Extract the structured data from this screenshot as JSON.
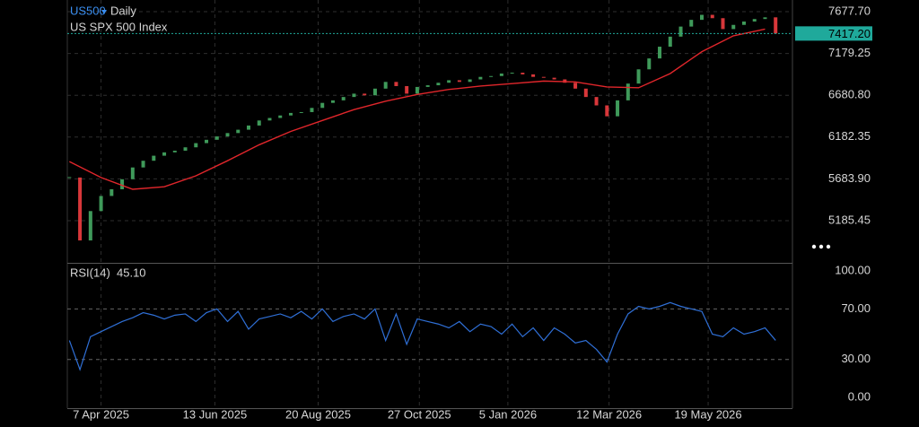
{
  "chart_data": [
    {
      "type": "candlestick",
      "symbol": "US500",
      "timeframe": "Daily",
      "subtitle": "US SPX 500 Index",
      "x": [
        -15,
        -10,
        -5,
        0,
        5,
        10,
        15,
        20,
        25,
        30,
        35,
        40,
        45,
        50,
        55,
        60,
        65,
        70,
        75,
        80,
        85,
        90,
        95,
        100,
        105,
        110,
        115,
        120,
        125,
        130,
        135,
        140,
        145,
        150,
        155,
        160,
        165,
        170,
        175,
        180,
        185,
        190,
        195,
        200,
        205,
        210,
        215,
        220,
        225,
        230,
        235,
        240,
        245,
        250,
        255,
        260,
        265,
        270,
        275,
        280,
        285,
        290,
        295,
        300,
        305,
        310,
        315,
        320
      ],
      "values": [
        5700,
        4950,
        5300,
        5480,
        5560,
        5680,
        5820,
        5900,
        5960,
        6000,
        6020,
        6060,
        6110,
        6150,
        6190,
        6230,
        6270,
        6320,
        6380,
        6410,
        6440,
        6470,
        6480,
        6530,
        6590,
        6620,
        6660,
        6700,
        6680,
        6760,
        6840,
        6790,
        6700,
        6780,
        6800,
        6830,
        6860,
        6840,
        6870,
        6900,
        6910,
        6940,
        6950,
        6930,
        6900,
        6890,
        6870,
        6830,
        6760,
        6660,
        6560,
        6430,
        6620,
        6820,
        6990,
        7120,
        7260,
        7380,
        7500,
        7580,
        7640,
        7600,
        7470,
        7520,
        7560,
        7590,
        7610,
        7417.2
      ],
      "up_color": "#3f9a5a",
      "down_color": "#d8373a",
      "overlay": {
        "x": [
          -15,
          0,
          15,
          30,
          45,
          60,
          75,
          90,
          105,
          120,
          135,
          150,
          165,
          180,
          195,
          210,
          225,
          240,
          255,
          270,
          285,
          300,
          315
        ],
        "values": [
          5890,
          5700,
          5560,
          5590,
          5720,
          5900,
          6090,
          6250,
          6380,
          6510,
          6610,
          6690,
          6750,
          6790,
          6820,
          6850,
          6840,
          6780,
          6770,
          6940,
          7200,
          7390,
          7470
        ],
        "color": "#e0262b"
      },
      "last_price": {
        "value": 7417.2,
        "label": "7417.20"
      },
      "last_color": "#1fa99b",
      "ylim": [
        4682.7,
        7816.7
      ],
      "yticks": [
        {
          "value": 7677.7,
          "label": "7677.70"
        },
        7179.25,
        {
          "value": 6680.8,
          "label": "6680.80"
        },
        6182.35,
        {
          "value": 5683.9,
          "label": "5683.90"
        },
        5185.45
      ],
      "grid": true
    },
    {
      "type": "line",
      "title": "RSI(14)",
      "last_value": {
        "value": 45.1,
        "label": "45.10"
      },
      "x": [
        -15,
        -10,
        -5,
        0,
        5,
        10,
        15,
        20,
        25,
        30,
        35,
        40,
        45,
        50,
        55,
        60,
        65,
        70,
        75,
        80,
        85,
        90,
        95,
        100,
        105,
        110,
        115,
        120,
        125,
        130,
        135,
        140,
        145,
        150,
        155,
        160,
        165,
        170,
        175,
        180,
        185,
        190,
        195,
        200,
        205,
        210,
        215,
        220,
        225,
        230,
        235,
        240,
        245,
        250,
        255,
        260,
        265,
        270,
        275,
        280,
        285,
        290,
        295,
        300,
        305,
        310,
        315,
        320
      ],
      "values": [
        45,
        22,
        48,
        52,
        56,
        60,
        63,
        67,
        65,
        62,
        65,
        66,
        60,
        67,
        70,
        60,
        68,
        54,
        62,
        64,
        66,
        63,
        68,
        62,
        70,
        60,
        64,
        66,
        62,
        70,
        45,
        66,
        42,
        62,
        60,
        58,
        55,
        60,
        52,
        58,
        56,
        50,
        58,
        48,
        55,
        45,
        55,
        50,
        43,
        45,
        38,
        28,
        50,
        66,
        72,
        70,
        72,
        75,
        72,
        70,
        68,
        50,
        48,
        55,
        50,
        52,
        55,
        45.1
      ],
      "color": "#2f6fd6",
      "ylim": [
        -8.5,
        106.4
      ],
      "yticks": [
        {
          "value": 100,
          "label": "100.00"
        },
        {
          "value": 70,
          "label": "70.00"
        },
        {
          "value": 30,
          "label": "30.00"
        },
        {
          "value": 0,
          "label": "0.00"
        }
      ],
      "levels": [
        70,
        30
      ],
      "xlim": [
        -16,
        328
      ],
      "xticks": [
        {
          "value": 0,
          "label": "7 Apr 2025"
        },
        {
          "value": 54,
          "label": "13 Jun 2025"
        },
        {
          "value": 103,
          "label": "20 Aug 2025"
        },
        {
          "value": 151,
          "label": "27 Oct 2025"
        },
        {
          "value": 193,
          "label": "5 Jan 2026"
        },
        {
          "value": 241,
          "label": "12 Mar 2026"
        },
        {
          "value": 288,
          "label": "19 May 2026"
        }
      ],
      "grid": true
    }
  ]
}
